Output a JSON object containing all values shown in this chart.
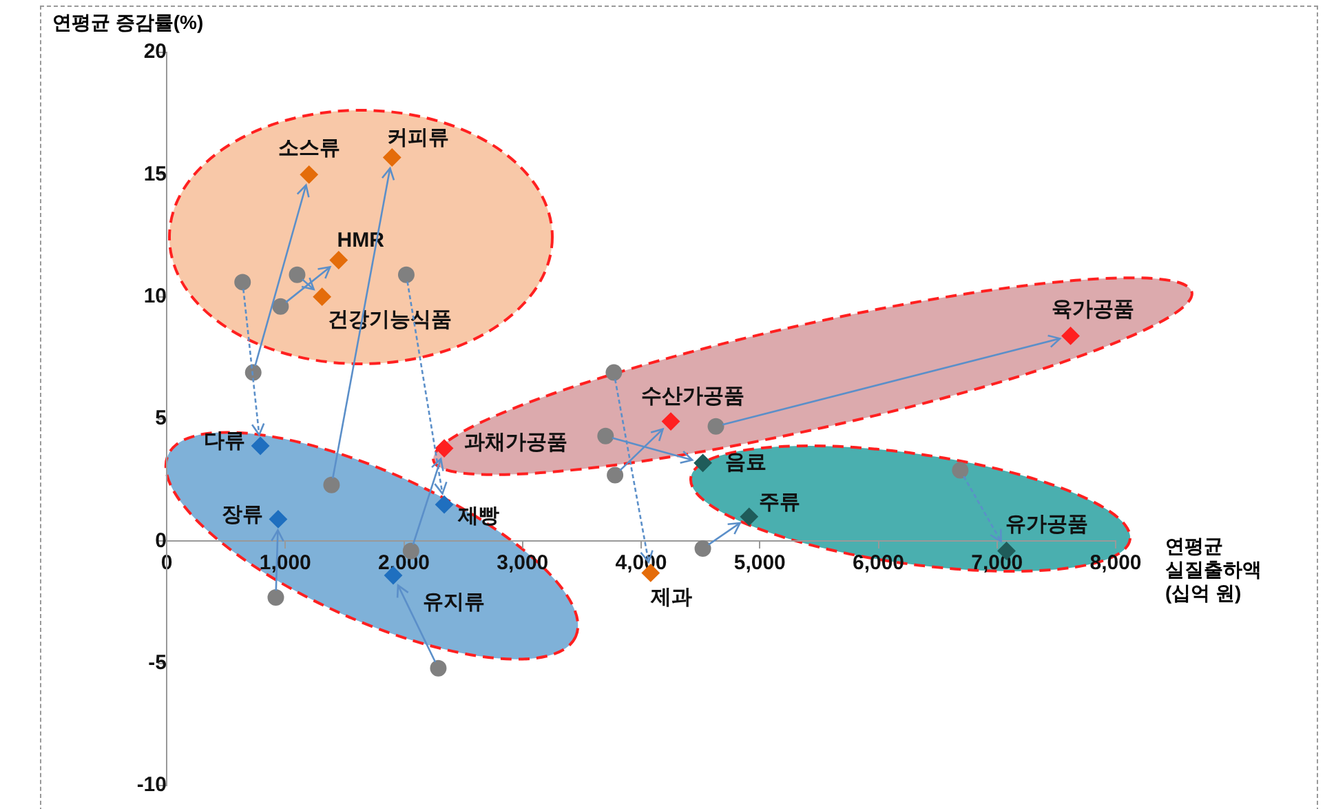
{
  "chart_data": {
    "type": "scatter",
    "ylabel": "연평균 증감률(%)",
    "xlabel": "연평균 실질출하액 (십억 원)",
    "xlim": [
      0,
      8000
    ],
    "xticks": [
      0,
      {
        "value": 1000,
        "label": "1,000"
      },
      {
        "value": 2000,
        "label": "2,000"
      },
      {
        "value": 3000,
        "label": "3,000"
      },
      {
        "value": 4000,
        "label": "4,000"
      },
      {
        "value": 5000,
        "label": "5,000"
      },
      {
        "value": 6000,
        "label": "6,000"
      },
      {
        "value": 7000,
        "label": "7,000"
      },
      {
        "value": 8000,
        "label": "8,000"
      }
    ],
    "ylim": [
      -10,
      20
    ],
    "yticks": [
      -10,
      -5,
      0,
      5,
      10,
      15,
      20
    ],
    "grid": false,
    "legend": false,
    "series": [
      {
        "color": "#808080",
        "marker": "circle",
        "x": [
          730,
          1390,
          960,
          1100,
          3770,
          640,
          920,
          2020,
          2290,
          2060,
          3780,
          4630,
          3700,
          4520,
          6690
        ],
        "values": [
          6.9,
          2.3,
          9.6,
          10.9,
          6.9,
          10.6,
          -2.3,
          10.9,
          -5.2,
          -0.4,
          2.7,
          4.7,
          4.3,
          -0.3,
          2.9
        ]
      },
      {
        "colors": [
          "#e46c0a",
          "#e46c0a",
          "#e46c0a",
          "#e46c0a",
          "#e46c0a",
          "#1f6fbf",
          "#1f6fbf",
          "#1f6fbf",
          "#1f6fbf",
          "#ff2020",
          "#ff2020",
          "#ff2020",
          "#1f5c5a",
          "#1f5c5a",
          "#1f5c5a"
        ],
        "marker": "diamond",
        "x": [
          1200,
          1900,
          1450,
          1310,
          4080,
          790,
          940,
          2340,
          1910,
          2340,
          4250,
          7620,
          4520,
          4910,
          7080
        ],
        "values": [
          15.0,
          15.7,
          11.5,
          10.0,
          -1.3,
          3.9,
          0.9,
          1.5,
          -1.4,
          3.8,
          4.9,
          8.4,
          3.2,
          1.0,
          -0.4
        ]
      }
    ],
    "annotations": [
      {
        "text": "소스류",
        "x": 1200,
        "y": 15.0
      },
      {
        "text": "커피류",
        "x": 1900,
        "y": 15.7
      },
      {
        "text": "HMR",
        "x": 1450,
        "y": 11.5
      },
      {
        "text": "건강기능식품",
        "x": 1310,
        "y": 10.0
      },
      {
        "text": "제과",
        "x": 4080,
        "y": -1.3
      },
      {
        "text": "다류",
        "x": 790,
        "y": 3.9
      },
      {
        "text": "장류",
        "x": 940,
        "y": 0.9
      },
      {
        "text": "제빵",
        "x": 2340,
        "y": 1.5
      },
      {
        "text": "유지류",
        "x": 1910,
        "y": -1.4
      },
      {
        "text": "과채가공품",
        "x": 2340,
        "y": 3.8
      },
      {
        "text": "수산가공품",
        "x": 4250,
        "y": 4.9
      },
      {
        "text": "육가공품",
        "x": 7620,
        "y": 8.4
      },
      {
        "text": "음료",
        "x": 4520,
        "y": 3.2
      },
      {
        "text": "주류",
        "x": 4910,
        "y": 1.0
      },
      {
        "text": "유가공품",
        "x": 7080,
        "y": -0.4
      }
    ]
  }
}
